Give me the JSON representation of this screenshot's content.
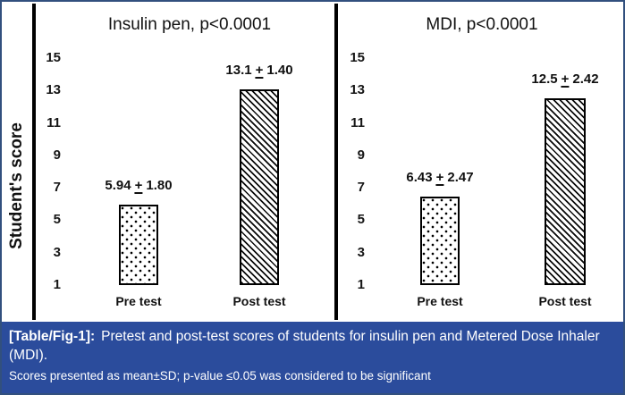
{
  "figure": {
    "ylabel": "Student's score",
    "yticks": [
      "15",
      "13",
      "11",
      "9",
      "7",
      "5",
      "3",
      "1"
    ],
    "panels": [
      {
        "title": "Insulin pen, p<0.0001",
        "bars": [
          {
            "category": "Pre test",
            "mean": "5.94",
            "pm": "+",
            "sd": "1.80"
          },
          {
            "category": "Post test",
            "mean": "13.1",
            "pm": "+",
            "sd": "1.40"
          }
        ]
      },
      {
        "title": "MDI, p<0.0001",
        "bars": [
          {
            "category": "Pre test",
            "mean": "6.43",
            "pm": "+",
            "sd": "2.47"
          },
          {
            "category": "Post test",
            "mean": "12.5",
            "pm": "+",
            "sd": "2.42"
          }
        ]
      }
    ]
  },
  "caption": {
    "tag": "[Table/Fig-1]:",
    "body": "Pretest and post-test scores of students for insulin pen and Metered Dose Inhaler (MDI).",
    "note": "Scores presented as mean±SD; p-value ≤0.05 was considered to be significant"
  },
  "colors": {
    "caption_background": "#2B4C9C",
    "figure_border": "#32507E",
    "bar_outline": "#000000",
    "text": "#111111"
  },
  "chart_data": [
    {
      "type": "bar",
      "title": "Insulin pen, p<0.0001",
      "categories": [
        "Pre test",
        "Post test"
      ],
      "values": [
        5.94,
        13.1
      ],
      "sd": [
        1.8,
        1.4
      ],
      "data_labels": [
        "5.94 ± 1.80",
        "13.1 ± 1.40"
      ],
      "xlabel": "",
      "ylabel": "Student's score",
      "ylim": [
        1,
        16
      ],
      "yticks": [
        1,
        3,
        5,
        7,
        9,
        11,
        13,
        15
      ],
      "p_value": "p<0.0001",
      "grid": false,
      "legend": false,
      "bar_patterns": [
        "dots",
        "diagonal-hatch"
      ]
    },
    {
      "type": "bar",
      "title": "MDI, p<0.0001",
      "categories": [
        "Pre test",
        "Post test"
      ],
      "values": [
        6.43,
        12.5
      ],
      "sd": [
        2.47,
        2.42
      ],
      "data_labels": [
        "6.43 ± 2.47",
        "12.5 ± 2.42"
      ],
      "xlabel": "",
      "ylabel": "Student's score",
      "ylim": [
        1,
        16
      ],
      "yticks": [
        1,
        3,
        5,
        7,
        9,
        11,
        13,
        15
      ],
      "p_value": "p<0.0001",
      "grid": false,
      "legend": false,
      "bar_patterns": [
        "dots",
        "diagonal-hatch"
      ]
    }
  ]
}
